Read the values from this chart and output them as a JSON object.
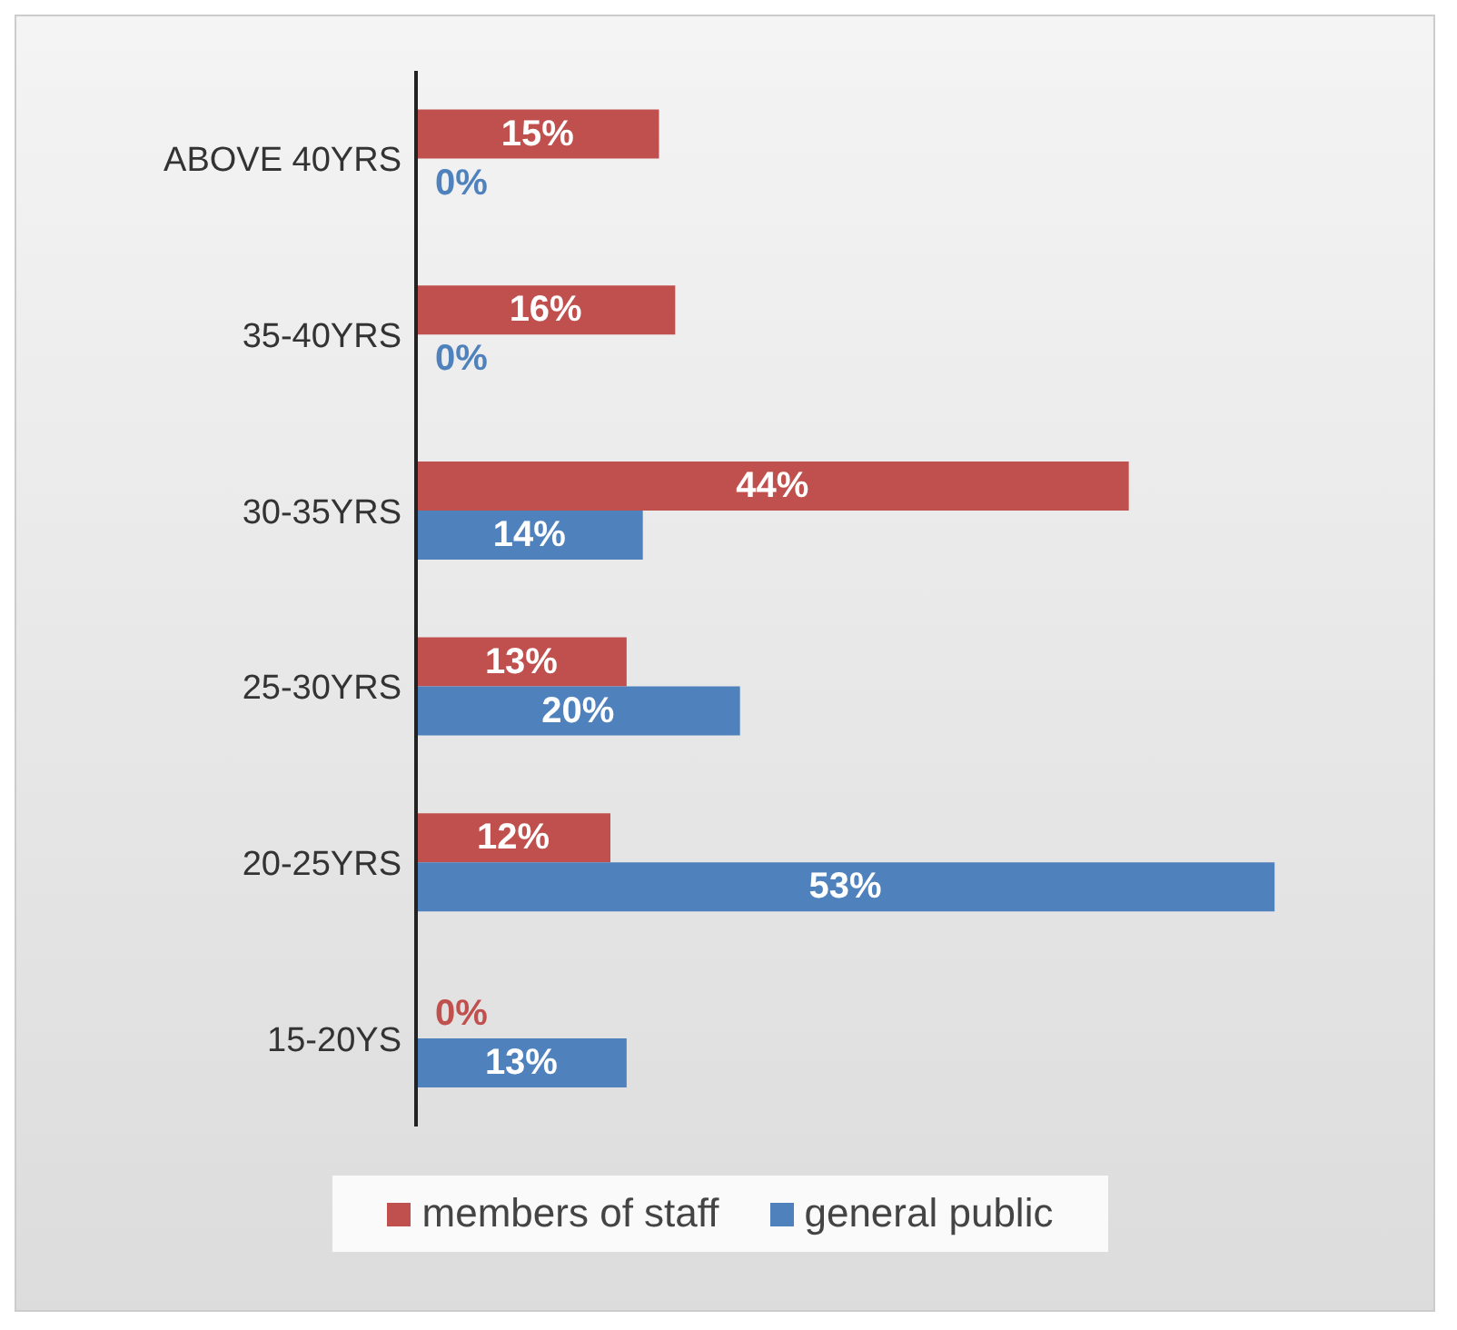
{
  "chart_data": {
    "type": "bar",
    "orientation": "horizontal",
    "categories": [
      "ABOVE 40YRS",
      "35-40YRS",
      "30-35YRS",
      "25-30YRS",
      "20-25YRS",
      "15-20YS"
    ],
    "series": [
      {
        "name": "members of staff",
        "color": "#c0504d",
        "values": [
          15,
          16,
          44,
          13,
          12,
          0
        ],
        "value_labels": [
          "15%",
          "16%",
          "44%",
          "13%",
          "12%",
          "0%"
        ]
      },
      {
        "name": "general public",
        "color": "#4f81bd",
        "values": [
          0,
          0,
          14,
          20,
          53,
          13
        ],
        "value_labels": [
          "0%",
          "0%",
          "14%",
          "20%",
          "53%",
          "13%"
        ]
      }
    ],
    "legend": "bottom",
    "tick_labels": "y"
  }
}
